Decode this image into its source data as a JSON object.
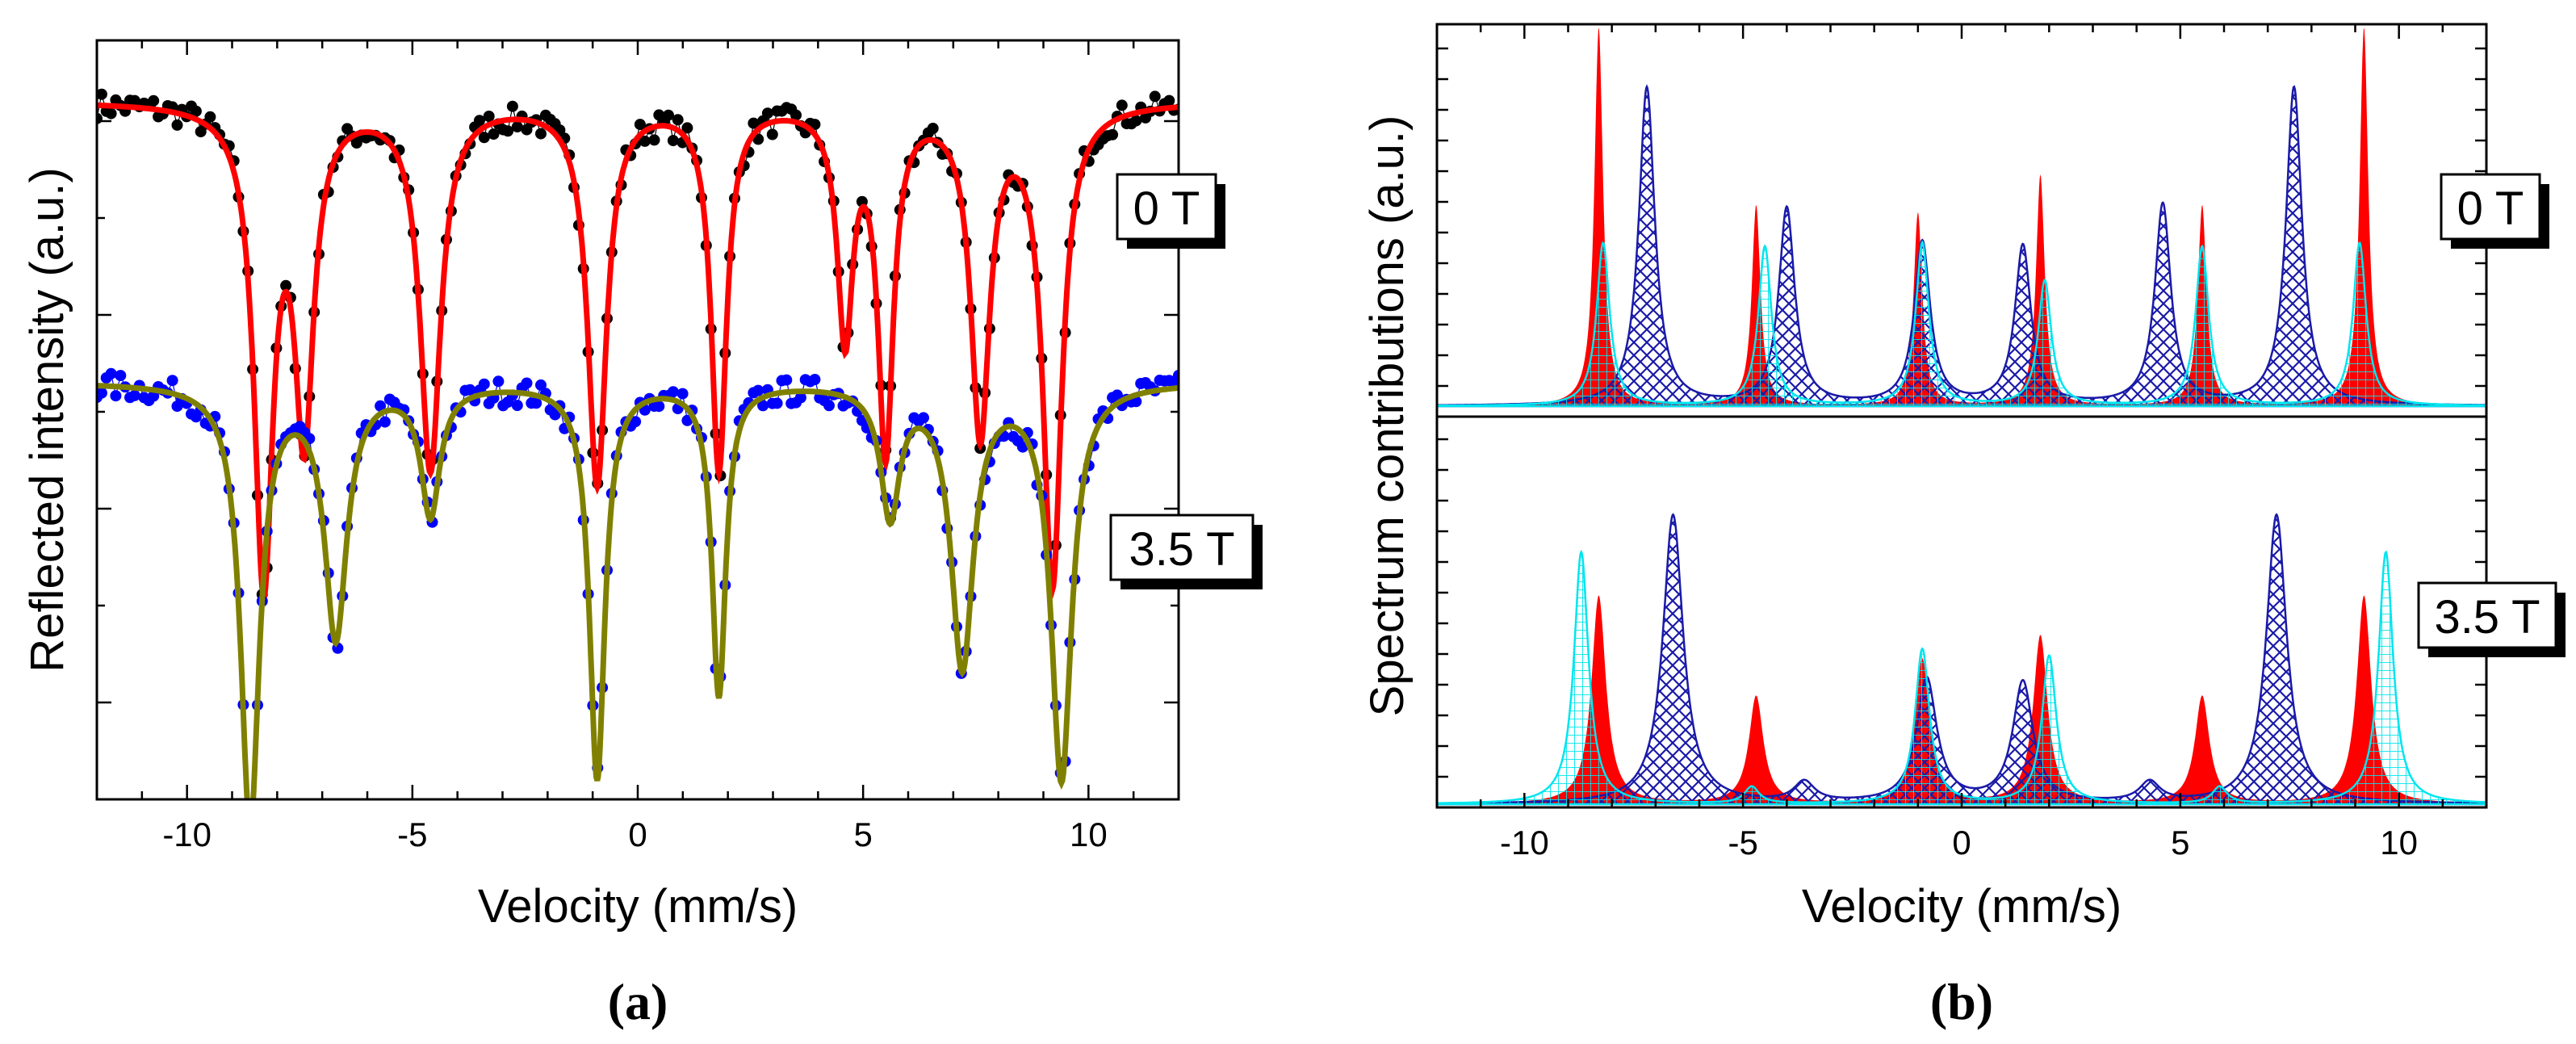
{
  "panels": [
    {
      "id": "a",
      "caption": "(a)",
      "xlabel": "Velocity (mm/s)",
      "ylabel": "Reflected intensity (a.u.)",
      "xlim": [
        -12,
        12
      ],
      "xticks": [
        -10,
        -5,
        0,
        5,
        10
      ],
      "field_labels": [
        "0 T",
        "3.5 T"
      ]
    },
    {
      "id": "b",
      "caption": "(b)",
      "xlabel": "Velocity (mm/s)",
      "ylabel": "Spectrum contributions (a.u.)",
      "xlim": [
        -12,
        12
      ],
      "xticks": [
        -10,
        -5,
        0,
        5,
        10
      ],
      "field_labels": [
        "0 T",
        "3.5 T"
      ]
    }
  ],
  "chart_data": [
    {
      "type": "scatter",
      "title": "",
      "xlabel": "Velocity (mm/s)",
      "ylabel": "Reflected intensity (a.u.)",
      "xlim": [
        -12,
        12
      ],
      "ylim": [
        0,
        1
      ],
      "xticks": [
        -10,
        -5,
        0,
        5,
        10
      ],
      "series": [
        {
          "name": "0 T data",
          "color": "#000000",
          "baseline": 0.92,
          "dips": [
            {
              "x": -8.3,
              "depth": 0.62,
              "w": 0.22
            },
            {
              "x": -7.4,
              "depth": 0.42,
              "w": 0.22
            },
            {
              "x": -4.6,
              "depth": 0.48,
              "w": 0.24
            },
            {
              "x": -0.9,
              "depth": 0.5,
              "w": 0.22
            },
            {
              "x": 1.8,
              "depth": 0.48,
              "w": 0.18
            },
            {
              "x": 4.6,
              "depth": 0.3,
              "w": 0.18
            },
            {
              "x": 5.5,
              "depth": 0.45,
              "w": 0.18
            },
            {
              "x": 7.6,
              "depth": 0.43,
              "w": 0.22
            },
            {
              "x": 9.2,
              "depth": 0.63,
              "w": 0.22
            }
          ]
        },
        {
          "name": "0 T fit",
          "color": "#ff0000"
        },
        {
          "name": "3.5 T data",
          "color": "#0000ff",
          "baseline": 0.55,
          "dips": [
            {
              "x": -8.6,
              "depth": 0.58,
              "w": 0.22
            },
            {
              "x": -6.7,
              "depth": 0.33,
              "w": 0.26
            },
            {
              "x": -4.6,
              "depth": 0.17,
              "w": 0.22
            },
            {
              "x": -0.9,
              "depth": 0.52,
              "w": 0.18
            },
            {
              "x": 1.8,
              "depth": 0.41,
              "w": 0.16
            },
            {
              "x": 5.6,
              "depth": 0.17,
              "w": 0.22
            },
            {
              "x": 7.2,
              "depth": 0.37,
              "w": 0.26
            },
            {
              "x": 9.4,
              "depth": 0.52,
              "w": 0.24
            }
          ]
        },
        {
          "name": "3.5 T fit",
          "color": "#808000"
        }
      ],
      "annotations": [
        "0 T",
        "3.5 T"
      ]
    },
    {
      "type": "area",
      "title": "",
      "xlabel": "Velocity (mm/s)",
      "ylabel": "Spectrum contributions (a.u.)",
      "xlim": [
        -12,
        12
      ],
      "ylim": [
        0,
        1
      ],
      "xticks": [
        -10,
        -5,
        0,
        5,
        10
      ],
      "subplots": [
        {
          "label": "0 T",
          "series": [
            {
              "name": "red component",
              "color": "#ff0000",
              "fill": "solid",
              "w": 0.12,
              "peaks": [
                [
                  -8.3,
                  1.0
                ],
                [
                  -4.7,
                  0.53
                ],
                [
                  -1.0,
                  0.51
                ],
                [
                  1.8,
                  0.61
                ],
                [
                  5.5,
                  0.53
                ],
                [
                  9.2,
                  1.0
                ]
              ]
            },
            {
              "name": "blue component",
              "color": "#1a1aa8",
              "fill": "crosshatch",
              "w": 0.22,
              "peaks": [
                [
                  -7.2,
                  0.84
                ],
                [
                  -4.0,
                  0.52
                ],
                [
                  -0.9,
                  0.43
                ],
                [
                  1.4,
                  0.42
                ],
                [
                  4.6,
                  0.53
                ],
                [
                  7.6,
                  0.84
                ]
              ]
            },
            {
              "name": "cyan component",
              "color": "#00e5ee",
              "fill": "grid",
              "w": 0.18,
              "peaks": [
                [
                  -8.2,
                  0.43
                ],
                [
                  -4.5,
                  0.42
                ],
                [
                  -0.9,
                  0.43
                ],
                [
                  1.9,
                  0.33
                ],
                [
                  5.5,
                  0.42
                ],
                [
                  9.1,
                  0.43
                ]
              ]
            }
          ]
        },
        {
          "label": "3.5 T",
          "series": [
            {
              "name": "red component",
              "color": "#ff0000",
              "fill": "solid",
              "w": 0.2,
              "peaks": [
                [
                  -8.3,
                  0.62
                ],
                [
                  -4.7,
                  0.32
                ],
                [
                  -0.9,
                  0.43
                ],
                [
                  1.8,
                  0.5
                ],
                [
                  5.5,
                  0.32
                ],
                [
                  9.2,
                  0.62
                ]
              ]
            },
            {
              "name": "blue component",
              "color": "#1a1aa8",
              "fill": "crosshatch",
              "w": 0.28,
              "peaks": [
                [
                  -6.6,
                  0.86
                ],
                [
                  -3.6,
                  0.06
                ],
                [
                  -0.8,
                  0.37
                ],
                [
                  1.4,
                  0.36
                ],
                [
                  4.3,
                  0.06
                ],
                [
                  7.2,
                  0.86
                ]
              ]
            },
            {
              "name": "cyan component",
              "color": "#00e5ee",
              "fill": "grid",
              "w": 0.2,
              "peaks": [
                [
                  -8.7,
                  0.75
                ],
                [
                  -4.8,
                  0.05
                ],
                [
                  -0.9,
                  0.46
                ],
                [
                  2.0,
                  0.44
                ],
                [
                  5.9,
                  0.05
                ],
                [
                  9.7,
                  0.75
                ]
              ]
            }
          ]
        }
      ]
    }
  ]
}
